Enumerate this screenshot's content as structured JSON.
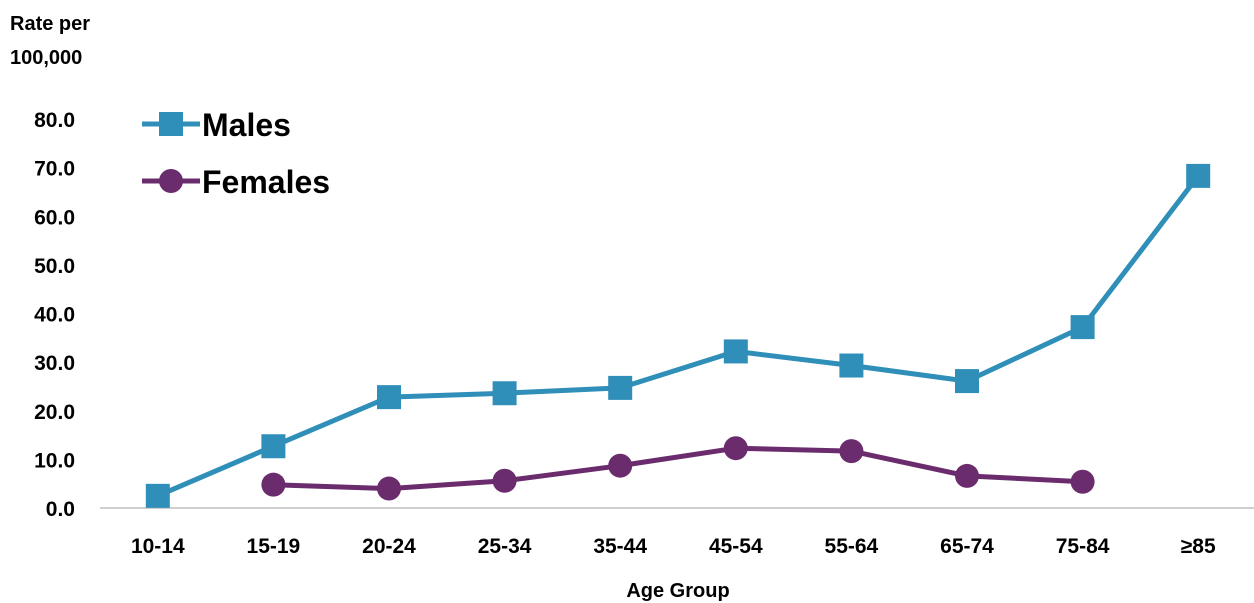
{
  "chart_data": {
    "type": "line",
    "ylabel_lines": [
      "Rate per",
      "100,000"
    ],
    "xlabel": "Age Group",
    "categories": [
      "10-14",
      "15-19",
      "20-24",
      "25-34",
      "35-44",
      "45-54",
      "55-64",
      "65-74",
      "75-84",
      "≥85"
    ],
    "ylim": [
      0,
      80
    ],
    "yticks": [
      "0.0",
      "10.0",
      "20.0",
      "30.0",
      "40.0",
      "50.0",
      "60.0",
      "70.0",
      "80.0"
    ],
    "grid": false,
    "legend_position": "top-left",
    "series": [
      {
        "name": "Males",
        "marker": "square",
        "color": "#2f8fb8",
        "values": [
          2.5,
          12.7,
          22.8,
          23.6,
          24.7,
          32.2,
          29.3,
          26.1,
          37.2,
          68.3
        ]
      },
      {
        "name": "Females",
        "marker": "circle",
        "color": "#6b2c6e",
        "values": [
          null,
          4.8,
          4.0,
          5.6,
          8.7,
          12.3,
          11.7,
          6.6,
          5.4,
          null
        ]
      }
    ]
  }
}
